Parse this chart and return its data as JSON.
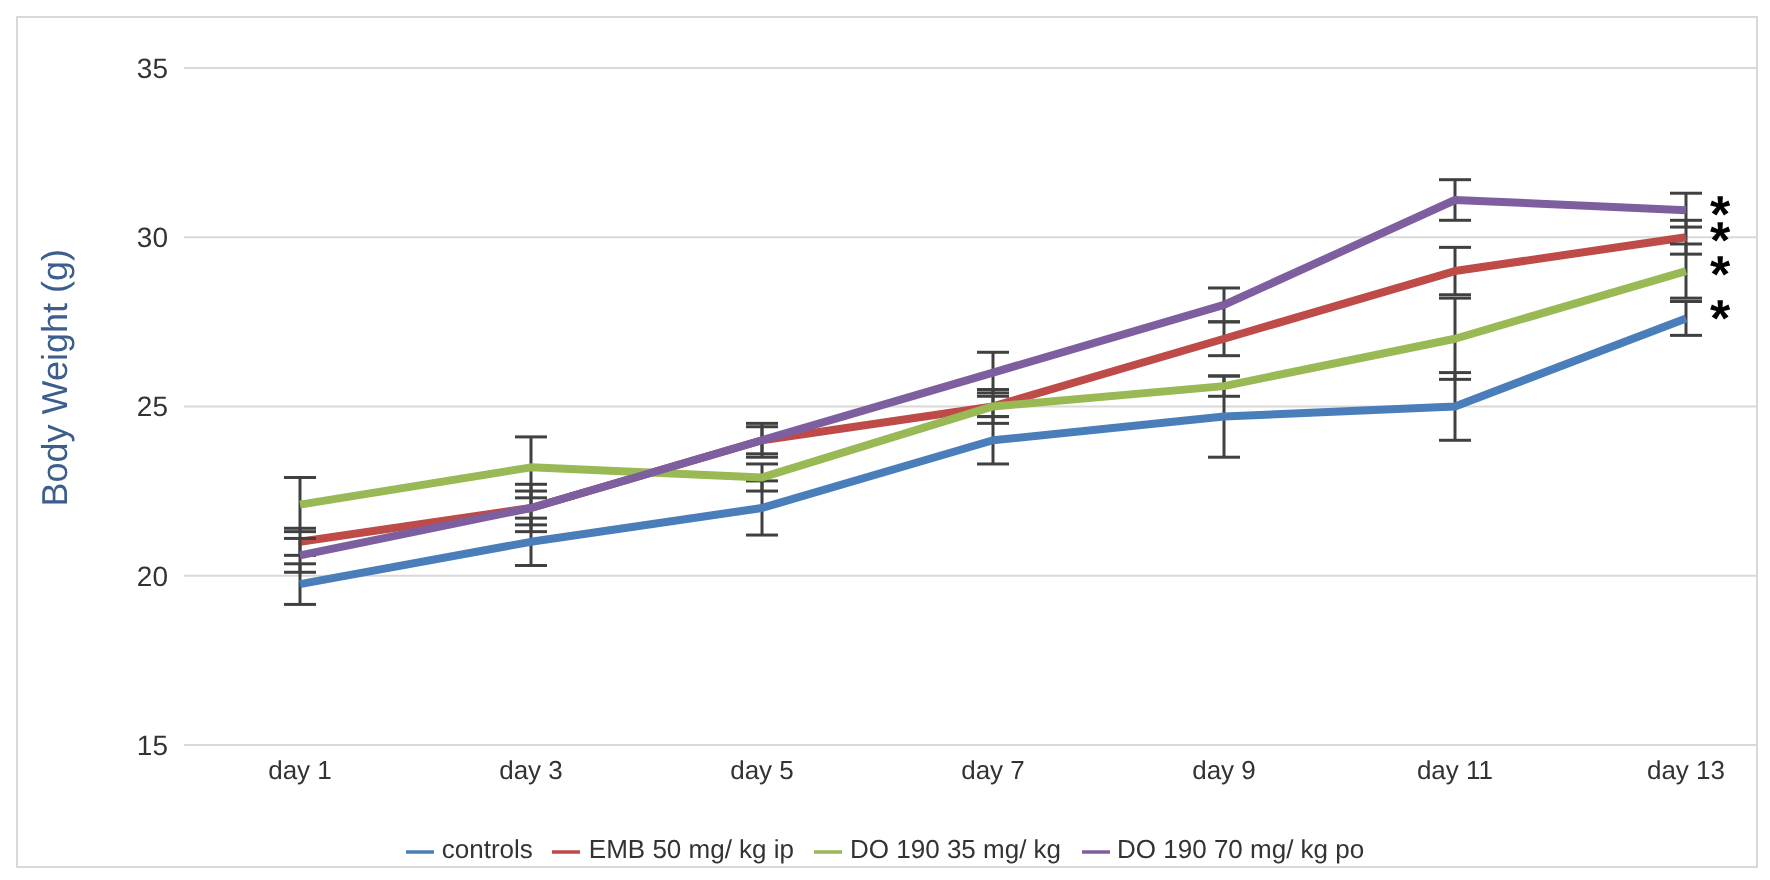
{
  "chart_data": {
    "type": "line",
    "ylabel": "Body Weight (g)",
    "categories": [
      "day 1",
      "day 3",
      "day 5",
      "day 7",
      "day 9",
      "day 11",
      "day 13"
    ],
    "ylim": [
      15,
      35
    ],
    "yticks": [
      15,
      20,
      25,
      30,
      35
    ],
    "grid": "y",
    "legend": "bottom",
    "marker": "none",
    "line_style": "solid",
    "series": [
      {
        "name": "controls",
        "color": "#4a7ebb",
        "values": [
          19.75,
          21.0,
          22.0,
          24.0,
          24.7,
          25.0,
          27.6
        ],
        "errors": [
          0.6,
          0.7,
          0.8,
          0.7,
          1.2,
          1.0,
          0.5
        ]
      },
      {
        "name": "EMB 50 mg/ kg ip",
        "color": "#be4b48",
        "values": [
          21.0,
          22.0,
          24.0,
          25.0,
          27.0,
          29.0,
          30.0
        ],
        "errors": [
          0.4,
          0.5,
          0.4,
          0.5,
          0.5,
          0.7,
          0.5
        ]
      },
      {
        "name": "DO 190 35 mg/ kg",
        "color": "#98b954",
        "values": [
          22.1,
          23.2,
          22.9,
          25.0,
          25.6,
          27.0,
          29.0
        ],
        "errors": [
          0.8,
          0.9,
          0.4,
          0.3,
          0.3,
          1.2,
          0.8
        ]
      },
      {
        "name": "DO 190 70 mg/ kg po",
        "color": "#7d5fa0",
        "values": [
          20.6,
          22.0,
          24.0,
          26.0,
          28.0,
          31.1,
          30.8
        ],
        "errors": [
          0.5,
          0.7,
          0.5,
          0.6,
          0.5,
          0.6,
          0.5
        ]
      }
    ],
    "annotations": [
      "*",
      "*",
      "*",
      "*"
    ]
  }
}
